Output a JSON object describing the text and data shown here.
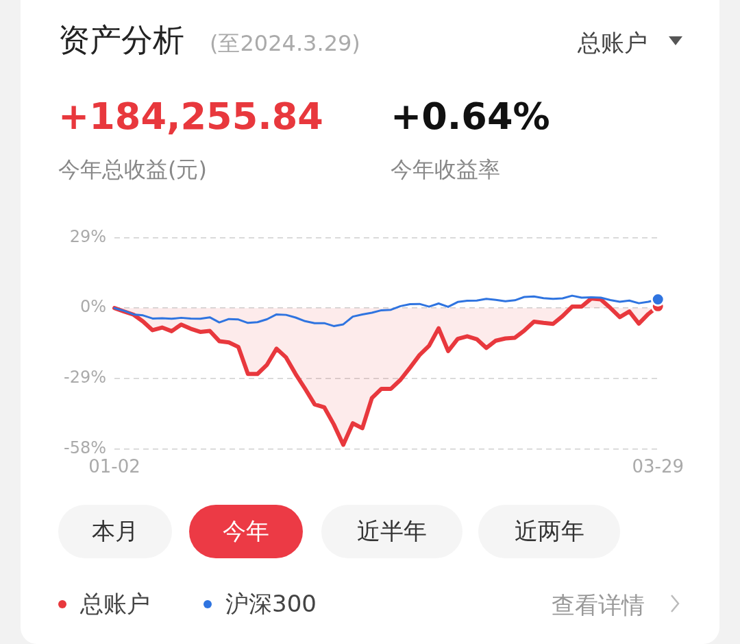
{
  "chart_data": {
    "type": "line",
    "title": "资产分析",
    "subtitle": "(至2024.3.29)",
    "categories": [
      "01-02",
      null,
      null,
      null,
      null,
      null,
      null,
      null,
      null,
      null,
      null,
      null,
      null,
      null,
      null,
      null,
      null,
      null,
      null,
      null,
      null,
      null,
      null,
      null,
      null,
      null,
      null,
      null,
      null,
      null,
      null,
      null,
      null,
      null,
      null,
      null,
      null,
      null,
      null,
      null,
      null,
      null,
      null,
      null,
      null,
      null,
      null,
      null,
      null,
      null,
      null,
      null,
      null,
      null,
      null,
      null,
      null,
      "03-29"
    ],
    "series": [
      {
        "name": "总账户",
        "type": "area",
        "color": "#e8383d",
        "values": [
          0,
          -1.4,
          -2.7,
          -5.5,
          -9.1,
          -8.0,
          -9.5,
          -6.8,
          -8.5,
          -9.8,
          -9.4,
          -13.6,
          -14.1,
          -16.0,
          -27.1,
          -27.1,
          -23.3,
          -16.7,
          -20.3,
          -27.1,
          -33.2,
          -39.6,
          -40.8,
          -47.8,
          -56.2,
          -47.4,
          -49.4,
          -37.0,
          -33.2,
          -33.2,
          -29.5,
          -24.5,
          -19.3,
          -15.5,
          -8.3,
          -17.7,
          -12.7,
          -11.6,
          -12.8,
          -16.4,
          -13.4,
          -12.5,
          -12.2,
          -9.2,
          -5.6,
          -6.1,
          -6.5,
          -3.3,
          0.6,
          0.6,
          3.9,
          3.6,
          0.1,
          -3.7,
          -1.4,
          -6.4,
          -2.4,
          0.8
        ]
      },
      {
        "name": "沪深300",
        "type": "line",
        "color": "#2f74e0",
        "values": [
          0,
          -1.1,
          -2.6,
          -3.0,
          -4.3,
          -4.2,
          -4.4,
          -4.0,
          -4.3,
          -4.4,
          -3.8,
          -5.9,
          -4.5,
          -4.7,
          -6.1,
          -5.8,
          -4.6,
          -2.6,
          -2.8,
          -3.9,
          -5.4,
          -6.2,
          -6.2,
          -7.4,
          -6.7,
          -3.5,
          -2.6,
          -1.9,
          -0.9,
          -0.7,
          0.8,
          1.6,
          1.7,
          0.6,
          1.9,
          0.5,
          2.5,
          3.0,
          3.1,
          3.8,
          3.4,
          2.8,
          3.2,
          4.6,
          4.8,
          4.1,
          3.8,
          4.0,
          5.1,
          4.3,
          4.4,
          4.3,
          3.3,
          2.6,
          3.1,
          2.0,
          2.6,
          3.6
        ]
      }
    ],
    "ylim": [
      -58,
      29
    ],
    "yticks": [
      {
        "value": 29,
        "label": "29%"
      },
      {
        "value": 0,
        "label": "0%"
      },
      {
        "value": -29,
        "label": "-29%"
      },
      {
        "value": -58,
        "label": "-58%"
      }
    ],
    "grid": "y",
    "legend": "bottom",
    "annotations": [
      "总账户",
      "+184,255.84",
      "今年总收益(元)",
      "+0.64%",
      "今年收益率",
      "本月",
      "今年",
      "近半年",
      "近两年",
      "查看详情"
    ]
  }
}
